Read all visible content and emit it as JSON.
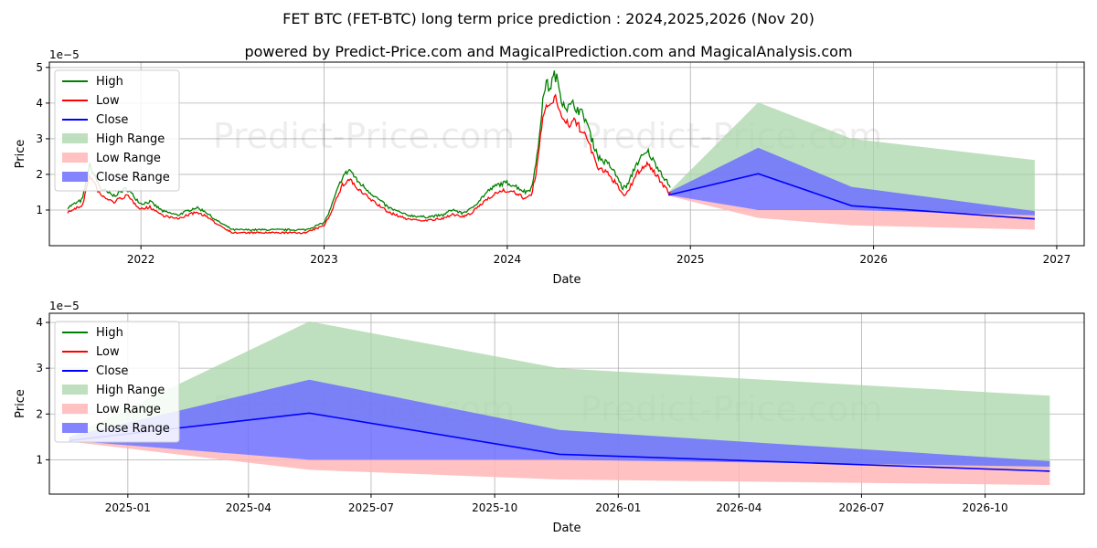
{
  "title": "FET BTC (FET-BTC) long term price prediction : 2024,2025,2026 (Nov 20)",
  "subtitle": "powered by Predict-Price.com and MagicalPrediction.com and MagicalAnalysis.com",
  "watermark": "Predict-Price.com",
  "colors": {
    "high": "#008000",
    "low": "#ff0000",
    "close": "#0000ff",
    "high_range": "#a8d5a8",
    "low_range": "#ffb6b6",
    "close_range": "#6e6eff",
    "grid": "#b0b0b0"
  },
  "legend": [
    "High",
    "Low",
    "Close",
    "High Range",
    "Low Range",
    "Close Range"
  ],
  "chart_data": [
    {
      "type": "line",
      "title": "",
      "xlabel": "Date",
      "ylabel": "Price",
      "scale_label": "1e−5",
      "xlim": [
        2021.5,
        2027.15
      ],
      "ylim": [
        0,
        5.15
      ],
      "x_ticks": [
        2022,
        2023,
        2024,
        2025,
        2026,
        2027
      ],
      "x_tick_labels": [
        "2022",
        "2023",
        "2024",
        "2025",
        "2026",
        "2027"
      ],
      "y_ticks": [
        1,
        2,
        3,
        4,
        5
      ],
      "y_tick_labels": [
        "1",
        "2",
        "3",
        "4",
        "5"
      ],
      "grid": true,
      "legend_position": "upper-left",
      "history_anchors": [
        [
          2021.6,
          1.0
        ],
        [
          2021.68,
          1.2
        ],
        [
          2021.72,
          2.1
        ],
        [
          2021.78,
          1.5
        ],
        [
          2021.85,
          1.3
        ],
        [
          2021.92,
          1.5
        ],
        [
          2022.0,
          1.1
        ],
        [
          2022.05,
          1.15
        ],
        [
          2022.12,
          0.9
        ],
        [
          2022.2,
          0.8
        ],
        [
          2022.3,
          1.0
        ],
        [
          2022.35,
          0.9
        ],
        [
          2022.4,
          0.7
        ],
        [
          2022.45,
          0.55
        ],
        [
          2022.5,
          0.4
        ],
        [
          2022.7,
          0.4
        ],
        [
          2022.9,
          0.4
        ],
        [
          2022.95,
          0.5
        ],
        [
          2023.0,
          0.6
        ],
        [
          2023.03,
          0.9
        ],
        [
          2023.06,
          1.3
        ],
        [
          2023.1,
          1.8
        ],
        [
          2023.14,
          2.0
        ],
        [
          2023.18,
          1.7
        ],
        [
          2023.25,
          1.4
        ],
        [
          2023.3,
          1.2
        ],
        [
          2023.35,
          1.0
        ],
        [
          2023.45,
          0.8
        ],
        [
          2023.55,
          0.75
        ],
        [
          2023.65,
          0.8
        ],
        [
          2023.7,
          0.95
        ],
        [
          2023.75,
          0.85
        ],
        [
          2023.8,
          0.95
        ],
        [
          2023.85,
          1.2
        ],
        [
          2023.9,
          1.45
        ],
        [
          2023.95,
          1.6
        ],
        [
          2024.0,
          1.65
        ],
        [
          2024.05,
          1.55
        ],
        [
          2024.1,
          1.4
        ],
        [
          2024.13,
          1.5
        ],
        [
          2024.16,
          2.2
        ],
        [
          2024.19,
          3.6
        ],
        [
          2024.21,
          4.3
        ],
        [
          2024.23,
          4.1
        ],
        [
          2024.26,
          4.5
        ],
        [
          2024.28,
          4.2
        ],
        [
          2024.3,
          3.8
        ],
        [
          2024.33,
          3.6
        ],
        [
          2024.36,
          3.7
        ],
        [
          2024.4,
          3.5
        ],
        [
          2024.43,
          3.3
        ],
        [
          2024.46,
          2.8
        ],
        [
          2024.5,
          2.3
        ],
        [
          2024.53,
          2.2
        ],
        [
          2024.56,
          2.1
        ],
        [
          2024.6,
          1.8
        ],
        [
          2024.63,
          1.5
        ],
        [
          2024.66,
          1.6
        ],
        [
          2024.7,
          2.1
        ],
        [
          2024.73,
          2.3
        ],
        [
          2024.77,
          2.45
        ],
        [
          2024.8,
          2.2
        ],
        [
          2024.83,
          2.0
        ],
        [
          2024.86,
          1.75
        ],
        [
          2024.89,
          1.55
        ]
      ],
      "forecast_x": [
        2024.88,
        2025.37,
        2025.88,
        2026.88
      ],
      "forecast_close": [
        1.42,
        2.02,
        1.12,
        0.75
      ],
      "close_range": {
        "upper": [
          1.5,
          2.75,
          1.65,
          0.97
        ],
        "lower": [
          1.42,
          1.0,
          1.0,
          0.85
        ]
      },
      "high_range": {
        "upper": [
          1.5,
          4.02,
          3.0,
          2.4
        ],
        "lower": [
          1.42,
          2.02,
          1.12,
          0.75
        ]
      },
      "low_range": {
        "upper": [
          1.42,
          1.0,
          1.0,
          0.85
        ],
        "lower": [
          1.4,
          0.78,
          0.57,
          0.45
        ]
      }
    },
    {
      "type": "line",
      "title": "",
      "xlabel": "Date",
      "ylabel": "Price",
      "scale_label": "1e−5",
      "xlim": [
        2024.84,
        2026.95
      ],
      "ylim": [
        0.25,
        4.2
      ],
      "x_ticks": [
        2025.0,
        2025.246,
        2025.496,
        2025.748,
        2026.0,
        2026.246,
        2026.496,
        2026.748
      ],
      "x_tick_labels": [
        "2025-01",
        "2025-04",
        "2025-07",
        "2025-10",
        "2026-01",
        "2026-04",
        "2026-07",
        "2026-10"
      ],
      "y_ticks": [
        1,
        2,
        3,
        4
      ],
      "y_tick_labels": [
        "1",
        "2",
        "3",
        "4"
      ],
      "grid": true,
      "legend_position": "upper-left",
      "forecast_x": [
        2024.88,
        2025.37,
        2025.88,
        2026.88
      ],
      "forecast_close": [
        1.42,
        2.02,
        1.12,
        0.75
      ],
      "close_range": {
        "upper": [
          1.5,
          2.75,
          1.65,
          0.97
        ],
        "lower": [
          1.42,
          1.0,
          1.0,
          0.85
        ]
      },
      "high_range": {
        "upper": [
          1.5,
          4.02,
          3.0,
          2.4
        ],
        "lower": [
          1.42,
          2.02,
          1.12,
          0.75
        ]
      },
      "low_range": {
        "upper": [
          1.42,
          1.0,
          1.0,
          0.85
        ],
        "lower": [
          1.4,
          0.78,
          0.57,
          0.45
        ]
      }
    }
  ]
}
